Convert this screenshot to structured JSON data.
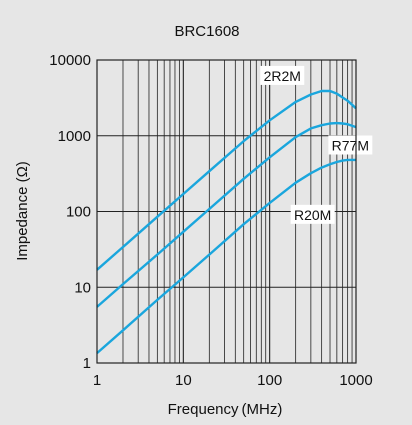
{
  "chart_data": {
    "type": "line",
    "title": "BRC1608",
    "xlabel": "Frequency (MHz)",
    "ylabel": "Impedance (Ω)",
    "x_scale": "log",
    "y_scale": "log",
    "xlim": [
      1,
      1000
    ],
    "ylim": [
      1,
      10000
    ],
    "xticks": [
      1,
      10,
      100,
      1000
    ],
    "xtick_labels": [
      "1",
      "10",
      "100",
      "1000"
    ],
    "yticks": [
      1,
      10,
      100,
      1000,
      10000
    ],
    "ytick_labels": [
      "1",
      "10",
      "100",
      "1000",
      "10000"
    ],
    "grid": true,
    "line_color": "#1aa6dd",
    "series": [
      {
        "name": "2R2M",
        "x": [
          1,
          2,
          5,
          10,
          20,
          50,
          100,
          200,
          300,
          400,
          500,
          600,
          700,
          800,
          1000
        ],
        "y": [
          17,
          34,
          85,
          170,
          340,
          850,
          1600,
          2800,
          3500,
          3900,
          3900,
          3600,
          3200,
          2900,
          2300
        ]
      },
      {
        "name": "R77M",
        "x": [
          1,
          2,
          5,
          10,
          20,
          50,
          100,
          200,
          300,
          400,
          500,
          600,
          700,
          800,
          1000
        ],
        "y": [
          5.5,
          11,
          27,
          54,
          108,
          270,
          520,
          960,
          1250,
          1380,
          1450,
          1470,
          1450,
          1420,
          1300
        ]
      },
      {
        "name": "R20M",
        "x": [
          1,
          2,
          5,
          10,
          20,
          50,
          100,
          200,
          300,
          400,
          500,
          600,
          700,
          800,
          1000
        ],
        "y": [
          1.35,
          2.7,
          6.8,
          13.5,
          27,
          68,
          130,
          240,
          320,
          380,
          420,
          450,
          470,
          480,
          480
        ]
      }
    ]
  }
}
